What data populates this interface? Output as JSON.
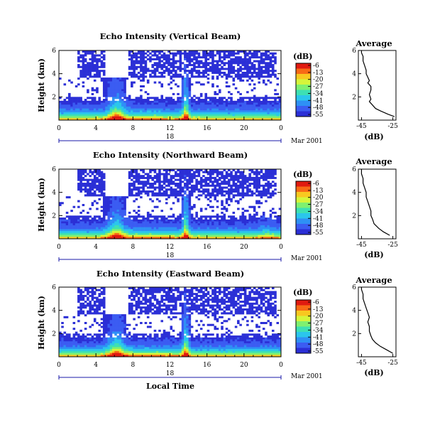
{
  "chart_data": [
    {
      "type": "heatmap",
      "title": "Echo Intensity (Vertical Beam)",
      "ylabel": "Height (km)",
      "x_ticks": [
        "0",
        "4",
        "8",
        "12",
        "16",
        "20",
        "0"
      ],
      "y_ticks": [
        "6",
        "4",
        "2"
      ],
      "xlim": [
        0,
        24
      ],
      "ylim": [
        0,
        6
      ],
      "date_label": "Mar 2001",
      "date_day": "18",
      "colorbar": {
        "unit": "(dB)",
        "ticks": [
          "-6",
          "-13",
          "-20",
          "-27",
          "-34",
          "-41",
          "-48",
          "-55"
        ]
      },
      "average": {
        "title": "Average",
        "xlabel": "(dB)",
        "x_ticks": [
          "-45",
          "-25"
        ],
        "y_ticks": [
          "6",
          "4",
          "2"
        ],
        "xlim": [
          -47,
          -23
        ],
        "ylim": [
          0,
          6
        ],
        "profile": [
          [
            0.3,
            -24
          ],
          [
            0.5,
            -28
          ],
          [
            0.8,
            -33
          ],
          [
            1.0,
            -36
          ],
          [
            1.3,
            -38
          ],
          [
            1.6,
            -40
          ],
          [
            1.8,
            -39
          ],
          [
            2.2,
            -40
          ],
          [
            2.6,
            -39
          ],
          [
            2.9,
            -39
          ],
          [
            3.2,
            -41
          ],
          [
            3.4,
            -40
          ],
          [
            3.7,
            -41
          ],
          [
            4.0,
            -42
          ],
          [
            4.3,
            -42
          ],
          [
            4.7,
            -43
          ],
          [
            5.1,
            -44
          ],
          [
            5.5,
            -44
          ],
          [
            5.8,
            -45
          ],
          [
            6.0,
            -45
          ]
        ]
      }
    },
    {
      "type": "heatmap",
      "title": "Echo Intensity (Northward Beam)",
      "ylabel": "Height (km)",
      "x_ticks": [
        "0",
        "4",
        "8",
        "12",
        "16",
        "20",
        "0"
      ],
      "y_ticks": [
        "6",
        "4",
        "2"
      ],
      "xlim": [
        0,
        24
      ],
      "ylim": [
        0,
        6
      ],
      "date_label": "Mar 2001",
      "date_day": "18",
      "colorbar": {
        "unit": "(dB)",
        "ticks": [
          "-6",
          "-13",
          "-20",
          "-27",
          "-34",
          "-41",
          "-48",
          "-55"
        ]
      },
      "average": {
        "title": "Average",
        "xlabel": "(dB)",
        "x_ticks": [
          "-45",
          "-25"
        ],
        "y_ticks": [
          "6",
          "4",
          "2"
        ],
        "xlim": [
          -47,
          -23
        ],
        "ylim": [
          0,
          6
        ],
        "profile": [
          [
            0.3,
            -27
          ],
          [
            0.6,
            -31
          ],
          [
            0.9,
            -34
          ],
          [
            1.3,
            -37
          ],
          [
            1.7,
            -38
          ],
          [
            2.0,
            -39
          ],
          [
            2.4,
            -39
          ],
          [
            2.8,
            -40
          ],
          [
            3.2,
            -41
          ],
          [
            3.6,
            -42
          ],
          [
            4.0,
            -42
          ],
          [
            4.4,
            -43
          ],
          [
            4.8,
            -44
          ],
          [
            5.2,
            -44
          ],
          [
            5.6,
            -45
          ],
          [
            6.0,
            -45
          ]
        ]
      }
    },
    {
      "type": "heatmap",
      "title": "Echo Intensity (Eastward Beam)",
      "ylabel": "Height (km)",
      "x_ticks": [
        "0",
        "4",
        "8",
        "12",
        "16",
        "20",
        "0"
      ],
      "y_ticks": [
        "6",
        "4",
        "2"
      ],
      "xlim": [
        0,
        24
      ],
      "ylim": [
        0,
        6
      ],
      "date_label": "Mar 2001",
      "date_day": "18",
      "xlabel": "Local Time",
      "colorbar": {
        "unit": "(dB)",
        "ticks": [
          "-6",
          "-13",
          "-20",
          "-27",
          "-34",
          "-41",
          "-48",
          "-55"
        ]
      },
      "average": {
        "title": "Average",
        "xlabel": "(dB)",
        "x_ticks": [
          "-45",
          "-25"
        ],
        "y_ticks": [
          "6",
          "4",
          "2"
        ],
        "xlim": [
          -47,
          -23
        ],
        "ylim": [
          0,
          6
        ],
        "profile": [
          [
            0.3,
            -25
          ],
          [
            0.6,
            -29
          ],
          [
            0.9,
            -33
          ],
          [
            1.2,
            -36
          ],
          [
            1.5,
            -38
          ],
          [
            1.8,
            -39
          ],
          [
            2.2,
            -40
          ],
          [
            2.6,
            -40
          ],
          [
            3.0,
            -41
          ],
          [
            3.4,
            -40
          ],
          [
            3.8,
            -41
          ],
          [
            4.2,
            -42
          ],
          [
            4.6,
            -43
          ],
          [
            5.0,
            -44
          ],
          [
            5.4,
            -44
          ],
          [
            5.8,
            -45
          ],
          [
            6.0,
            -45
          ]
        ]
      }
    }
  ],
  "colors": {
    "scale": [
      "#2b2fd6",
      "#3b5cf2",
      "#2e90f5",
      "#2bc6ec",
      "#3de0b3",
      "#7ff070",
      "#d6f53a",
      "#f8c820",
      "#f86a16",
      "#e01a10"
    ],
    "grid_line": "#000000",
    "time_bar": "#1a1aa8"
  }
}
